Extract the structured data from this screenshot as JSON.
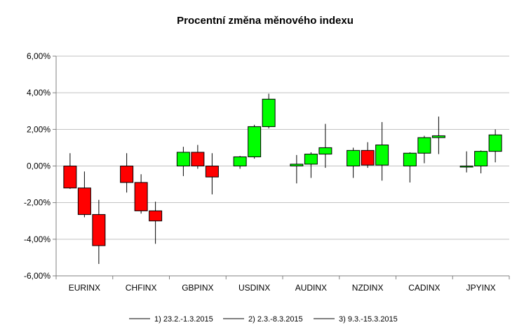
{
  "chart_data": {
    "type": "candlestick",
    "title": "Procentní změna měnového indexu",
    "xlabel": "",
    "ylabel": "",
    "ylim": [
      -6,
      6
    ],
    "yticks": [
      "6,00%",
      "4,00%",
      "2,00%",
      "0,00%",
      "-2,00%",
      "-4,00%",
      "-6,00%"
    ],
    "grid": true,
    "legend_position": "bottom",
    "categories": [
      "EURINX",
      "CHFINX",
      "GBPINX",
      "USDINX",
      "AUDINX",
      "NZDINX",
      "CADINX",
      "JPYINX"
    ],
    "series": [
      {
        "name": "1) 23.2.-1.3.2015",
        "values": [
          {
            "open": 0.0,
            "close": -1.2,
            "high": 0.7,
            "low": -1.25
          },
          {
            "open": 0.0,
            "close": -0.9,
            "high": 0.7,
            "low": -1.45
          },
          {
            "open": 0.0,
            "close": 0.75,
            "high": 1.05,
            "low": -0.55
          },
          {
            "open": 0.0,
            "close": 0.5,
            "high": 0.55,
            "low": -0.15
          },
          {
            "open": 0.0,
            "close": 0.1,
            "high": 0.6,
            "low": -0.95
          },
          {
            "open": 0.0,
            "close": 0.85,
            "high": 1.0,
            "low": -0.65
          },
          {
            "open": 0.0,
            "close": 0.7,
            "high": 0.75,
            "low": -0.9
          },
          {
            "open": 0.0,
            "close": 0.0,
            "high": 0.8,
            "low": -0.35
          }
        ]
      },
      {
        "name": "2) 2.3.-8.3.2015",
        "values": [
          {
            "open": -1.2,
            "close": -2.65,
            "high": -0.3,
            "low": -2.8
          },
          {
            "open": -0.9,
            "close": -2.45,
            "high": -0.45,
            "low": -2.6
          },
          {
            "open": 0.75,
            "close": 0.0,
            "high": 1.15,
            "low": -0.15
          },
          {
            "open": 0.5,
            "close": 2.15,
            "high": 2.25,
            "low": 0.4
          },
          {
            "open": 0.1,
            "close": 0.65,
            "high": 0.75,
            "low": -0.65
          },
          {
            "open": 0.85,
            "close": 0.05,
            "high": 1.3,
            "low": -0.1
          },
          {
            "open": 0.7,
            "close": 1.55,
            "high": 1.65,
            "low": 0.15
          },
          {
            "open": 0.0,
            "close": 0.8,
            "high": 0.85,
            "low": -0.4
          }
        ]
      },
      {
        "name": "3) 9.3.-15.3.2015",
        "values": [
          {
            "open": -2.65,
            "close": -4.35,
            "high": -1.85,
            "low": -5.35
          },
          {
            "open": -2.45,
            "close": -3.0,
            "high": -1.95,
            "low": -4.25
          },
          {
            "open": 0.0,
            "close": -0.6,
            "high": 0.7,
            "low": -1.55
          },
          {
            "open": 2.15,
            "close": 3.65,
            "high": 3.95,
            "low": 2.05
          },
          {
            "open": 0.65,
            "close": 1.0,
            "high": 2.3,
            "low": -0.1
          },
          {
            "open": 0.05,
            "close": 1.15,
            "high": 2.4,
            "low": -0.8
          },
          {
            "open": 1.55,
            "close": 1.65,
            "high": 2.7,
            "low": 0.65
          },
          {
            "open": 0.8,
            "close": 1.7,
            "high": 2.0,
            "low": 0.2
          }
        ]
      }
    ],
    "colors": {
      "up": "#00ff00",
      "down": "#ff0000",
      "axis": "#808080",
      "grid": "#c0c0c0",
      "wick": "#000000"
    }
  }
}
